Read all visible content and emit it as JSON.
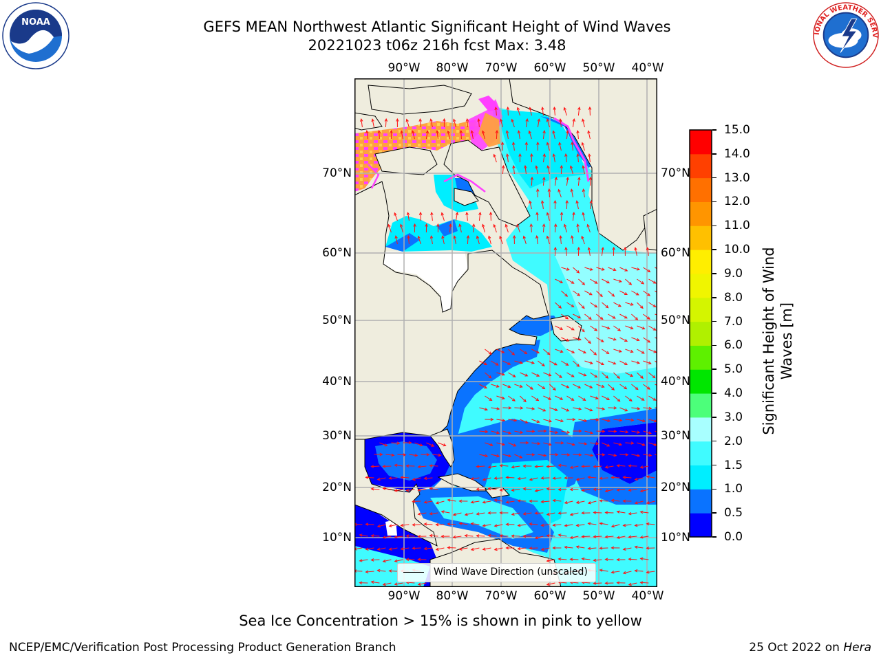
{
  "title": {
    "line1": "GEFS MEAN Northwest Atlantic Significant Height of Wind Waves",
    "line2": "20221023 t06z 216h fcst   Max: 3.48"
  },
  "logos": {
    "noaa": {
      "text": "NOAA",
      "ring_text": "NATIONAL OCEANIC AND ATMOSPHERIC ADMINISTRATION · U.S. DEPARTMENT OF COMMERCE"
    },
    "nws": {
      "ring_text": "NATIONAL WEATHER SERVICE"
    }
  },
  "map": {
    "lon_labels": [
      "90°W",
      "80°W",
      "70°W",
      "60°W",
      "50°W",
      "40°W"
    ],
    "lat_labels": [
      "70°N",
      "60°N",
      "50°N",
      "40°N",
      "30°N",
      "20°N",
      "10°N"
    ],
    "colors": {
      "land": "#efedde",
      "coast": "#000000",
      "grid": "#b0b0b0",
      "arrow": "#ff1010",
      "ice_pink": "#ff40ff",
      "ice_orange": "#ffa040"
    }
  },
  "legend": {
    "label": "Wind Wave Direction (unscaled)"
  },
  "colorbar": {
    "label_line1": "Significant Height of Wind",
    "label_line2": "Waves [m]",
    "levels": [
      0.0,
      0.5,
      1.0,
      1.5,
      2.0,
      3.0,
      4.0,
      5.0,
      6.0,
      7.0,
      8.0,
      9.0,
      10.0,
      11.0,
      12.0,
      13.0,
      14.0,
      15.0
    ],
    "tick_labels": [
      "0.0",
      "0.5",
      "1.0",
      "1.5",
      "2.0",
      "3.0",
      "4.0",
      "5.0",
      "6.0",
      "7.0",
      "8.0",
      "9.0",
      "10.0",
      "11.0",
      "12.0",
      "13.0",
      "14.0",
      "15.0"
    ],
    "colors": [
      "#0000ff",
      "#0a73ff",
      "#00eeff",
      "#40fbff",
      "#a8ffff",
      "#4cff7a",
      "#00e600",
      "#5ef000",
      "#b0f000",
      "#d4f500",
      "#f0f500",
      "#ffee00",
      "#ffc000",
      "#ff9500",
      "#ff7000",
      "#ff4000",
      "#ff0000"
    ]
  },
  "subcaption": "Sea Ice Concentration > 15% is shown in pink to yellow",
  "footer": {
    "left": "NCEP/EMC/Verification Post Processing Product Generation Branch",
    "right_date": "25 Oct 2022 on",
    "right_host": "Hera"
  }
}
